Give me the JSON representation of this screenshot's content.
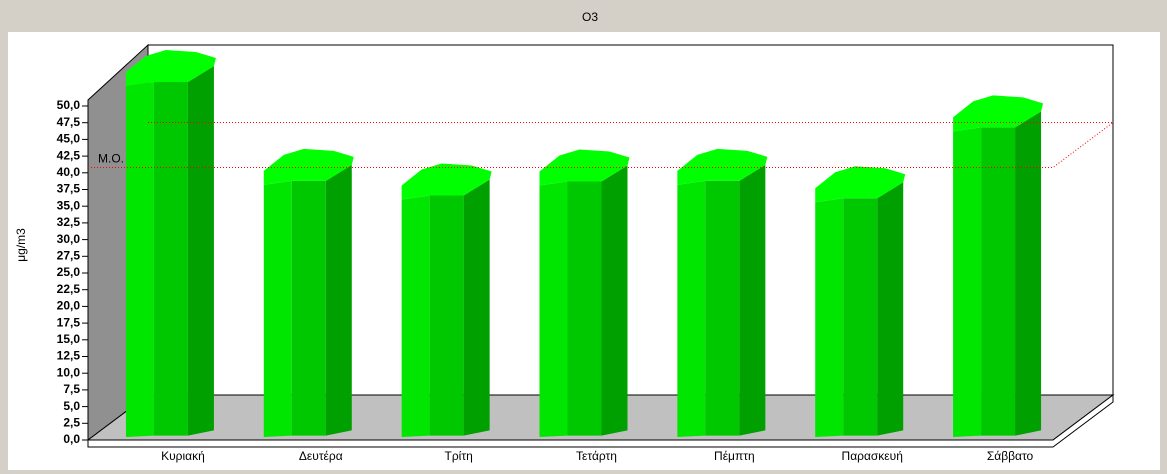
{
  "chart_data": {
    "type": "bar",
    "title": "O3",
    "ylabel": "μg/m3",
    "categories": [
      "Κυριακή",
      "Δευτέρα",
      "Τρίτη",
      "Τετάρτη",
      "Πέμπτη",
      "Παρασκευή",
      "Σάββατο"
    ],
    "values": [
      53,
      38.2,
      36,
      38.1,
      38.2,
      35.6,
      46.2
    ],
    "color": "#00cc00",
    "ylim": [
      0,
      52
    ],
    "yticks": [
      {
        "value": 0,
        "label": "0,0"
      },
      {
        "value": 2.5,
        "label": "2,5"
      },
      {
        "value": 5,
        "label": "5,0"
      },
      {
        "value": 7.5,
        "label": "7,5"
      },
      {
        "value": 10,
        "label": "10,0"
      },
      {
        "value": 12.5,
        "label": "12,5"
      },
      {
        "value": 15,
        "label": "15,0"
      },
      {
        "value": 17.5,
        "label": "17,5"
      },
      {
        "value": 20,
        "label": "20,0"
      },
      {
        "value": 22.5,
        "label": "22,5"
      },
      {
        "value": 25,
        "label": "25,0"
      },
      {
        "value": 27.5,
        "label": "27,5"
      },
      {
        "value": 30,
        "label": "30,0"
      },
      {
        "value": 32.5,
        "label": "32,5"
      },
      {
        "value": 35,
        "label": "35,0"
      },
      {
        "value": 37.5,
        "label": "37,5"
      },
      {
        "value": 40,
        "label": "40,0"
      },
      {
        "value": 42.5,
        "label": "42,5"
      },
      {
        "value": 45,
        "label": "45,0"
      },
      {
        "value": 47.5,
        "label": "47,5"
      },
      {
        "value": 50,
        "label": "50,0"
      }
    ],
    "mean_line": {
      "label": "M.O.",
      "value": 40.8,
      "color": "#ff0000"
    }
  }
}
